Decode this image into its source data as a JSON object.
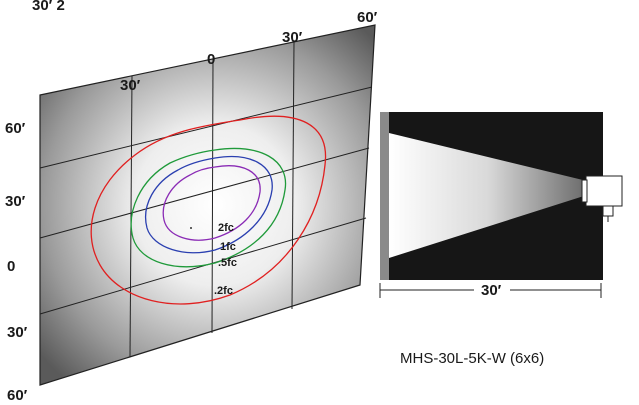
{
  "grid": {
    "top_labels": [
      "30′",
      "0",
      "30′",
      "60′"
    ],
    "left_labels": [
      "60′",
      "30′",
      "0",
      "30′",
      "60′"
    ]
  },
  "contours": [
    {
      "label": "2fc",
      "color": "#8a2bb5"
    },
    {
      "label": "1fc",
      "color": "#2a3fb0"
    },
    {
      "label": ".5fc",
      "color": "#1f9a3a"
    },
    {
      "label": ".2fc",
      "color": "#e02020"
    }
  ],
  "side_view": {
    "distance_label": "30′"
  },
  "model": "MHS-30L-5K-W (6x6)"
}
